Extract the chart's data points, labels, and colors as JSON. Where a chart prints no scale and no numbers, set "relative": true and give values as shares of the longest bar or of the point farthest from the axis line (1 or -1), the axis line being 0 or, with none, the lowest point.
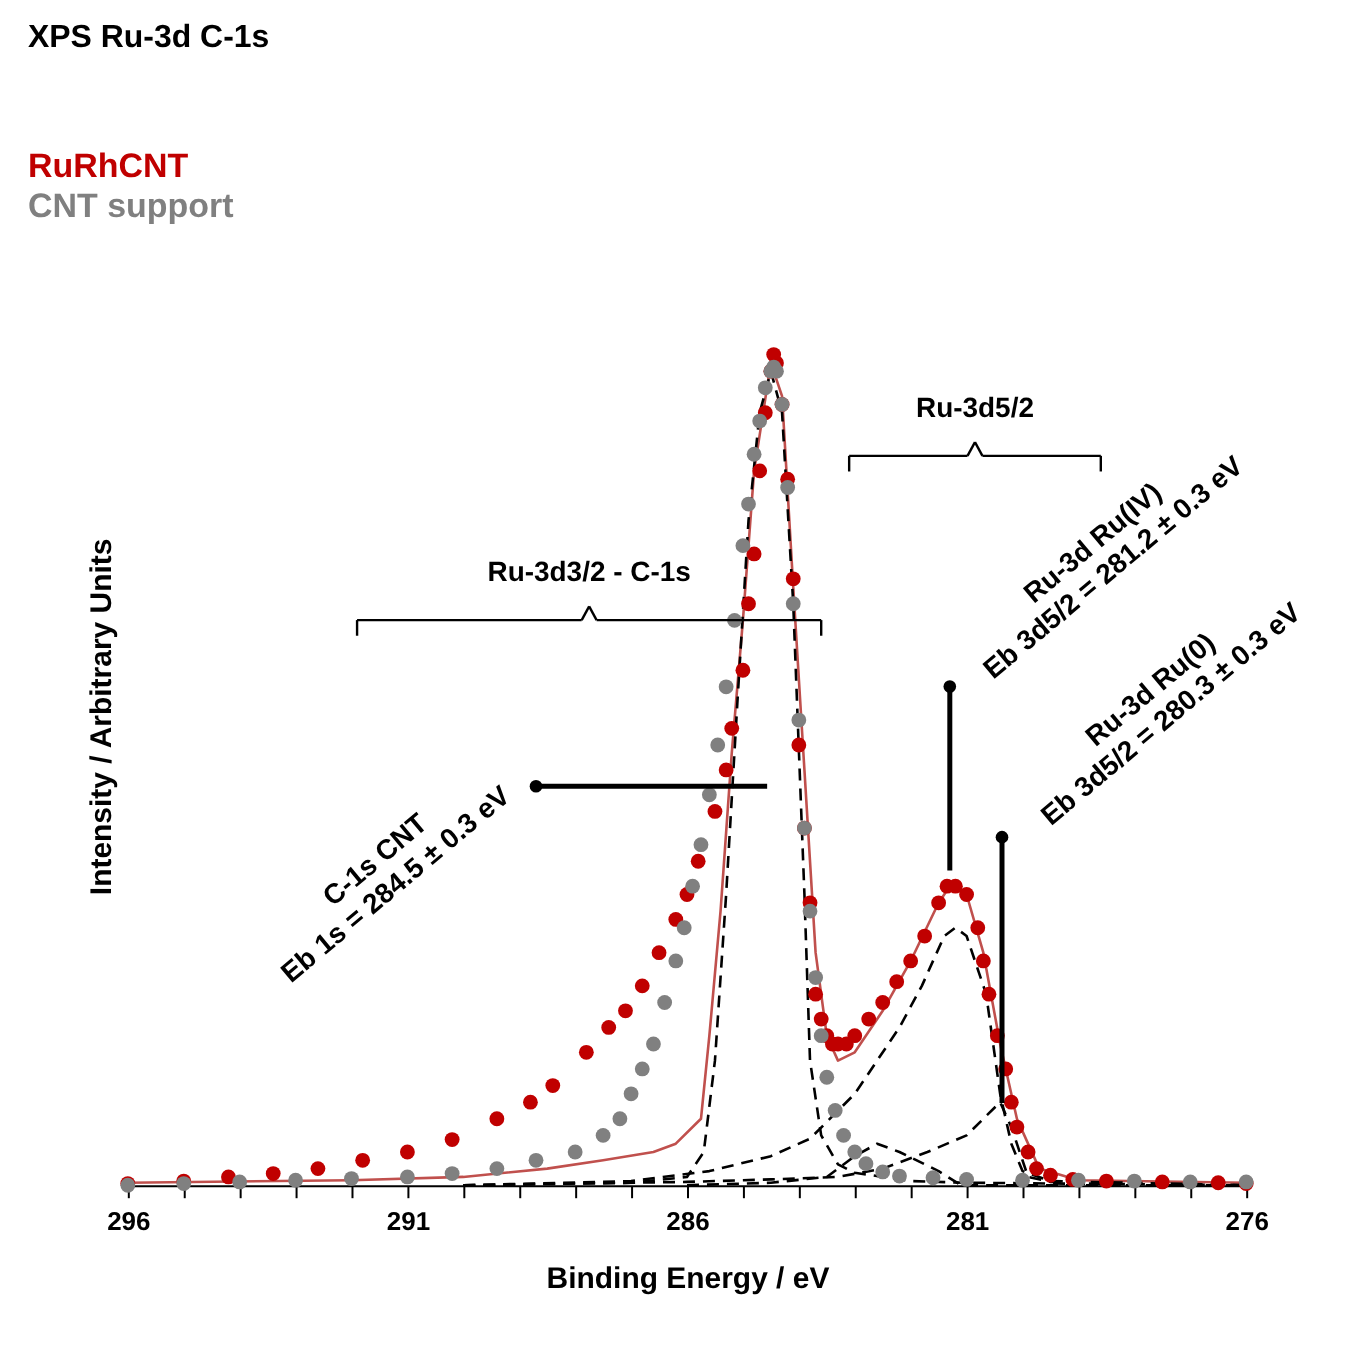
{
  "chart_data": {
    "type": "scatter",
    "title": "XPS Ru-3d C-1s",
    "xlabel": "Binding Energy / eV",
    "ylabel": "Intensity / Arbitrary Units",
    "relative": true,
    "legend": "top left",
    "grid": false,
    "xlim": [
      296,
      276
    ],
    "xticks": [
      296,
      {
        "value": 295,
        "label": null
      },
      {
        "value": 294,
        "label": null
      },
      {
        "value": 293,
        "label": null
      },
      {
        "value": 292,
        "label": null
      },
      291,
      {
        "value": 290,
        "label": null
      },
      {
        "value": 289,
        "label": null
      },
      {
        "value": 288,
        "label": null
      },
      {
        "value": 287,
        "label": null
      },
      286,
      {
        "value": 285,
        "label": null
      },
      {
        "value": 284,
        "label": null
      },
      {
        "value": 283,
        "label": null
      },
      {
        "value": 282,
        "label": null
      },
      281,
      {
        "value": 280,
        "label": null
      },
      {
        "value": 279,
        "label": null
      },
      {
        "value": 278,
        "label": null
      },
      {
        "value": 277,
        "label": null
      },
      276
    ],
    "series": [
      {
        "name": "RuRhCNT",
        "type": "scatter",
        "marker": "circle",
        "color": "#c00000",
        "x": [
          296,
          295,
          294.2,
          293.4,
          292.6,
          291.8,
          291.0,
          290.2,
          289.4,
          288.8,
          288.4,
          287.8,
          287.4,
          287.1,
          286.8,
          286.5,
          286.2,
          286.0,
          285.8,
          285.5,
          285.3,
          285.2,
          285.0,
          284.9,
          284.8,
          284.7,
          284.6,
          284.5,
          284.45,
          284.4,
          284.3,
          284.2,
          284.1,
          284.0,
          283.9,
          283.8,
          283.7,
          283.6,
          283.5,
          283.4,
          283.3,
          283.15,
          283.0,
          282.75,
          282.5,
          282.25,
          282.0,
          281.75,
          281.5,
          281.35,
          281.2,
          281.0,
          280.8,
          280.7,
          280.6,
          280.45,
          280.3,
          280.2,
          280.1,
          279.9,
          279.75,
          279.5,
          279.1,
          278.5,
          277.5,
          276.5,
          276
        ],
        "values": [
          0.002,
          0.005,
          0.01,
          0.014,
          0.02,
          0.03,
          0.04,
          0.055,
          0.08,
          0.1,
          0.12,
          0.16,
          0.19,
          0.21,
          0.24,
          0.28,
          0.32,
          0.35,
          0.39,
          0.45,
          0.5,
          0.55,
          0.62,
          0.7,
          0.76,
          0.86,
          0.93,
          0.98,
          1.0,
          0.99,
          0.94,
          0.85,
          0.73,
          0.53,
          0.43,
          0.34,
          0.23,
          0.2,
          0.18,
          0.17,
          0.17,
          0.17,
          0.18,
          0.2,
          0.22,
          0.245,
          0.27,
          0.3,
          0.34,
          0.36,
          0.36,
          0.35,
          0.31,
          0.27,
          0.23,
          0.18,
          0.14,
          0.1,
          0.07,
          0.04,
          0.02,
          0.012,
          0.007,
          0.005,
          0.004,
          0.003,
          0.002
        ]
      },
      {
        "name": "CNT support",
        "type": "scatter",
        "marker": "circle",
        "color": "#808080",
        "x": [
          296,
          295,
          294,
          293,
          292,
          291,
          290.2,
          289.4,
          288.7,
          288.0,
          287.5,
          287.2,
          287.0,
          286.8,
          286.6,
          286.4,
          286.2,
          286.05,
          285.9,
          285.75,
          285.6,
          285.45,
          285.3,
          285.15,
          285.0,
          284.9,
          284.8,
          284.7,
          284.6,
          284.5,
          284.45,
          284.4,
          284.3,
          284.2,
          284.1,
          284.0,
          283.9,
          283.8,
          283.7,
          283.6,
          283.5,
          283.35,
          283.2,
          283.0,
          282.8,
          282.5,
          282.2,
          281.6,
          281.0,
          280.0,
          279.0,
          278.0,
          277.0,
          276
        ],
        "values": [
          0.0,
          0.002,
          0.004,
          0.006,
          0.008,
          0.01,
          0.014,
          0.02,
          0.03,
          0.04,
          0.06,
          0.08,
          0.11,
          0.14,
          0.17,
          0.22,
          0.27,
          0.31,
          0.36,
          0.41,
          0.47,
          0.53,
          0.6,
          0.68,
          0.77,
          0.82,
          0.88,
          0.92,
          0.96,
          0.98,
          0.985,
          0.98,
          0.94,
          0.84,
          0.7,
          0.56,
          0.43,
          0.33,
          0.25,
          0.18,
          0.13,
          0.09,
          0.06,
          0.04,
          0.026,
          0.016,
          0.011,
          0.009,
          0.007,
          0.006,
          0.006,
          0.005,
          0.004,
          0.004
        ]
      },
      {
        "type": "line",
        "line_style": "solid",
        "color": "#c0504d",
        "x": [
          296,
          292,
          290,
          288.5,
          287.5,
          286.6,
          286.2,
          285.75,
          285.6,
          285.4,
          285.2,
          285.0,
          284.8,
          284.5,
          284.3,
          284.1,
          283.9,
          283.7,
          283.5,
          283.3,
          283.0,
          282.5,
          282.0,
          281.5,
          281.3,
          281.0,
          280.7,
          280.4,
          280.1,
          279.7,
          279,
          276
        ],
        "values": [
          0.003,
          0.006,
          0.01,
          0.02,
          0.03,
          0.04,
          0.05,
          0.08,
          0.18,
          0.33,
          0.52,
          0.68,
          0.86,
          0.99,
          0.95,
          0.72,
          0.5,
          0.28,
          0.18,
          0.15,
          0.16,
          0.21,
          0.27,
          0.34,
          0.36,
          0.35,
          0.28,
          0.17,
          0.08,
          0.02,
          0.006,
          0.003
        ]
      },
      {
        "type": "line",
        "line_style": "dashed",
        "color": "#000000",
        "x": [
          290,
          287,
          286,
          285.7,
          285.5,
          285.3,
          285.1,
          284.9,
          284.7,
          284.5,
          284.3,
          284.1,
          283.9,
          283.8,
          283.6,
          283.3,
          283.0,
          282.0,
          281.0,
          276
        ],
        "values": [
          0.0,
          0.003,
          0.01,
          0.04,
          0.15,
          0.35,
          0.58,
          0.8,
          0.93,
          0.98,
          0.93,
          0.7,
          0.35,
          0.15,
          0.06,
          0.025,
          0.015,
          0.005,
          0.003,
          0.0
        ]
      },
      {
        "type": "line",
        "line_style": "dashed",
        "color": "#000000",
        "x": [
          290,
          287,
          285.6,
          284.5,
          283.8,
          283.0,
          282.2,
          281.8,
          281.4,
          281.2,
          281.0,
          280.65,
          280.4,
          280.2,
          280.0,
          279.5,
          276
        ],
        "values": [
          0.0,
          0.005,
          0.017,
          0.035,
          0.056,
          0.11,
          0.19,
          0.24,
          0.3,
          0.31,
          0.3,
          0.23,
          0.11,
          0.05,
          0.017,
          0.005,
          0.0
        ]
      },
      {
        "type": "line",
        "line_style": "dashed",
        "color": "#000000",
        "x": [
          290,
          286,
          284.5,
          283.3,
          282.5,
          281.7,
          281.0,
          280.7,
          280.4,
          280.2,
          279.9,
          279.5,
          278,
          276
        ],
        "values": [
          0.0,
          0.004,
          0.007,
          0.01,
          0.02,
          0.04,
          0.06,
          0.08,
          0.1,
          0.07,
          0.01,
          0.004,
          0.0,
          0.0
        ]
      },
      {
        "type": "line",
        "line_style": "dashed",
        "color": "#000000",
        "x": [
          286,
          284.5,
          283.5,
          283.0,
          282.6,
          282.2,
          281.5,
          281.1,
          279,
          276
        ],
        "values": [
          0.0,
          0.003,
          0.01,
          0.035,
          0.05,
          0.04,
          0.017,
          0.0,
          0.0,
          0.0
        ]
      }
    ],
    "annotations": [
      "C-1s CNT\nEb 1s = 284.5 ± 0.3 eV",
      "Ru-3d Ru(IV)\nEb 3d5/2 = 281.2 ± 0.3 eV",
      "Ru-3d Ru(0)\nEb 3d5/2 = 280.3 ± 0.3 eV",
      "Ru-3d3/2 - C-1s",
      "Ru-3d5/2"
    ]
  }
}
